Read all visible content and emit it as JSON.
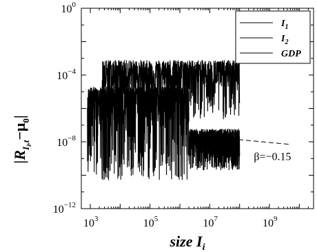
{
  "chart_data": {
    "type": "scatter",
    "x_scale": "log",
    "y_scale": "log",
    "xlim": [
      500,
      30000000000.0
    ],
    "ylim": [
      1e-12,
      1
    ],
    "x_ticks": [
      {
        "value": 1000.0,
        "base": "10",
        "exp": "3"
      },
      {
        "value": 100000.0,
        "base": "10",
        "exp": "5"
      },
      {
        "value": 10000000.0,
        "base": "10",
        "exp": "7"
      },
      {
        "value": 1000000000.0,
        "base": "10",
        "exp": "9"
      }
    ],
    "y_ticks": [
      {
        "value": 1.0,
        "base": "10",
        "exp": "0"
      },
      {
        "value": 0.0001,
        "base": "10",
        "exp": "−4"
      },
      {
        "value": 1e-08,
        "base": "10",
        "exp": "−8"
      },
      {
        "value": 1e-12,
        "base": "10",
        "exp": "−12"
      }
    ],
    "xlabel": {
      "main": "size I",
      "sub": "i"
    },
    "ylabel": {
      "pre": "|R",
      "sub": "I",
      "subsub": "i",
      "subtail": ",t",
      "post": "−μ",
      "post_sub": "0",
      "close": "|"
    },
    "legend": {
      "placement": "top-right",
      "entries": [
        {
          "label": "I",
          "sub": "1"
        },
        {
          "label": "I",
          "sub": "2"
        },
        {
          "label": "GDP",
          "sub": ""
        }
      ]
    },
    "series": [
      {
        "name": "I1",
        "color": "#000000",
        "x_range": [
          2500,
          100000000.0
        ],
        "y_center": 0.0001,
        "y_min": 2e-07,
        "y_max": 0.0008
      },
      {
        "name": "I2",
        "color": "#000000",
        "x_range": [
          800,
          2000000.0
        ],
        "y_center": 3e-06,
        "y_min": 5e-11,
        "y_max": 2e-05
      },
      {
        "name": "GDP",
        "color": "#000000",
        "x_range": [
          2000000.0,
          100000000.0
        ],
        "y_center": 8e-09,
        "y_min": 2e-10,
        "y_max": 6e-08
      }
    ],
    "fit_line": {
      "style": "dashed",
      "x": [
        5000000.0,
        5000000000.0
      ],
      "y": [
        2.2e-08,
        7e-09
      ],
      "label": "β=−0.15",
      "label_x": 300000000.0,
      "label_y": 8e-10
    },
    "grid": false
  }
}
